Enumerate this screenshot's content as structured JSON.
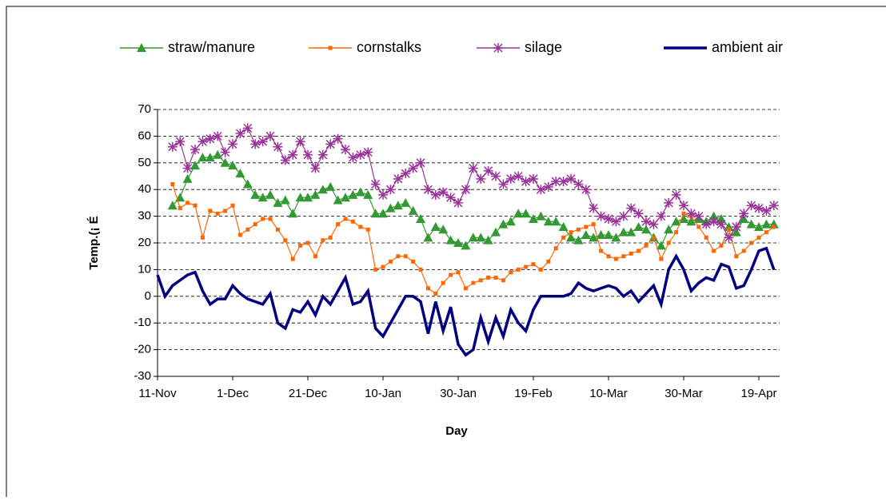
{
  "chart_data": {
    "type": "line",
    "y_label": "Temp.(¡ É",
    "x_label": "Day",
    "categories": [
      "11-Nov",
      null,
      null,
      null,
      null,
      null,
      null,
      null,
      null,
      null,
      "1-Dec",
      null,
      null,
      null,
      null,
      null,
      null,
      null,
      null,
      null,
      "21-Dec",
      null,
      null,
      null,
      null,
      null,
      null,
      null,
      null,
      null,
      "10-Jan",
      null,
      null,
      null,
      null,
      null,
      null,
      null,
      null,
      null,
      "30-Jan",
      null,
      null,
      null,
      null,
      null,
      null,
      null,
      null,
      null,
      "19-Feb",
      null,
      null,
      null,
      null,
      null,
      null,
      null,
      null,
      null,
      "10-Mar",
      null,
      null,
      null,
      null,
      null,
      null,
      null,
      null,
      null,
      "30-Mar",
      null,
      null,
      null,
      null,
      null,
      null,
      null,
      null,
      null,
      "19-Apr",
      null,
      null
    ],
    "series": [
      {
        "name": "straw/manure",
        "color": "#339933",
        "marker": "triangle",
        "values": [
          null,
          null,
          34,
          37,
          44,
          49,
          52,
          52,
          53,
          50,
          49,
          46,
          42,
          38,
          37,
          38,
          35,
          36,
          31,
          37,
          37,
          38,
          40,
          41,
          36,
          37,
          38,
          39,
          38,
          31,
          31,
          33,
          34,
          35,
          32,
          29,
          22,
          26,
          25,
          21,
          20,
          19,
          22,
          22,
          21,
          24,
          27,
          28,
          31,
          31,
          29,
          30,
          28,
          28,
          26,
          22,
          21,
          23,
          22,
          23,
          23,
          22,
          24,
          24,
          26,
          25,
          22,
          19,
          25,
          28,
          29,
          28,
          29,
          28,
          30,
          29,
          26,
          24,
          29,
          27,
          26,
          27,
          27
        ]
      },
      {
        "name": "cornstalks",
        "color": "#ff6600",
        "marker": "square",
        "values": [
          null,
          null,
          42,
          33,
          35,
          34,
          22,
          32,
          31,
          32,
          34,
          23,
          25,
          27,
          29,
          29,
          25,
          21,
          14,
          19,
          20,
          15,
          21,
          22,
          27,
          29,
          28,
          26,
          25,
          10,
          11,
          13,
          15,
          15,
          13,
          10,
          3,
          1,
          5,
          8,
          9,
          3,
          5,
          6,
          7,
          7,
          6,
          9,
          10,
          11,
          12,
          10,
          13,
          18,
          22,
          24,
          25,
          26,
          27,
          17,
          15,
          14,
          15,
          16,
          17,
          19,
          22,
          14,
          20,
          24,
          31,
          30,
          26,
          22,
          17,
          19,
          25,
          15,
          17,
          20,
          22,
          24,
          26
        ]
      },
      {
        "name": "silage",
        "color": "#993399",
        "marker": "star",
        "values": [
          null,
          null,
          56,
          58,
          48,
          55,
          58,
          59,
          60,
          54,
          57,
          61,
          63,
          57,
          58,
          60,
          56,
          51,
          53,
          58,
          53,
          48,
          53,
          57,
          59,
          55,
          52,
          53,
          54,
          42,
          38,
          40,
          44,
          46,
          48,
          50,
          40,
          38,
          39,
          37,
          35,
          40,
          48,
          44,
          47,
          45,
          42,
          44,
          45,
          43,
          44,
          40,
          41,
          43,
          43,
          44,
          42,
          40,
          33,
          30,
          29,
          28,
          30,
          33,
          31,
          28,
          27,
          30,
          35,
          38,
          34,
          31,
          30,
          27,
          28,
          27,
          22,
          26,
          31,
          34,
          33,
          32,
          34
        ]
      },
      {
        "name": "ambient air",
        "color": "#000080",
        "marker": "none",
        "values": [
          8,
          0,
          4,
          6,
          8,
          9,
          2,
          -3,
          -1,
          -1,
          4,
          1,
          -1,
          -2,
          -3,
          1,
          -10,
          -12,
          -5,
          -6,
          -2,
          -7,
          0,
          -3,
          2,
          7,
          -3,
          -2,
          2,
          -12,
          -15,
          -10,
          -5,
          0,
          0,
          -2,
          -14,
          -2,
          -13,
          -4,
          -18,
          -22,
          -20,
          -8,
          -17,
          -8,
          -15,
          -5,
          -10,
          -13,
          -5,
          0,
          0,
          0,
          0,
          1,
          5,
          3,
          2,
          3,
          4,
          3,
          0,
          2,
          -2,
          1,
          4,
          -3,
          10,
          15,
          10,
          2,
          5,
          7,
          6,
          12,
          11,
          3,
          4,
          10,
          17,
          18,
          10
        ]
      }
    ],
    "ylim": [
      -30,
      70
    ],
    "yticks": [
      -30,
      -20,
      -10,
      0,
      10,
      20,
      30,
      40,
      50,
      60,
      70
    ],
    "grid": true,
    "legend": "top"
  }
}
